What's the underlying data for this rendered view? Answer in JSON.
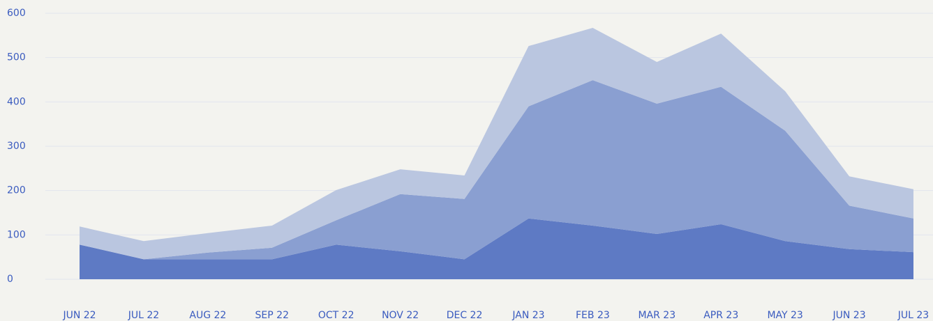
{
  "chart_data": {
    "type": "stacked_area",
    "categories": [
      "JUN 22",
      "JUL 22",
      "AUG 22",
      "SEP 22",
      "OCT 22",
      "NOV 22",
      "DEC 22",
      "JAN 23",
      "FEB 23",
      "MAR 23",
      "APR 23",
      "MAY 23",
      "JUN 23",
      "JUL 23"
    ],
    "series": [
      {
        "color": "#5e7ac4",
        "values": [
          78,
          45,
          45,
          45,
          78,
          63,
          45,
          137,
          121,
          102,
          124,
          86,
          68,
          61
        ]
      },
      {
        "color": "#8a9fd1",
        "values": [
          0,
          0,
          15,
          26,
          55,
          129,
          136,
          253,
          328,
          294,
          310,
          249,
          98,
          76
        ]
      },
      {
        "color": "#bac6e0",
        "values": [
          41,
          41,
          44,
          50,
          68,
          56,
          53,
          136,
          118,
          94,
          120,
          89,
          66,
          66
        ]
      }
    ],
    "ylim": [
      0,
      600
    ],
    "yticks": [
      0,
      100,
      200,
      300,
      400,
      500,
      600
    ],
    "grid": true
  }
}
